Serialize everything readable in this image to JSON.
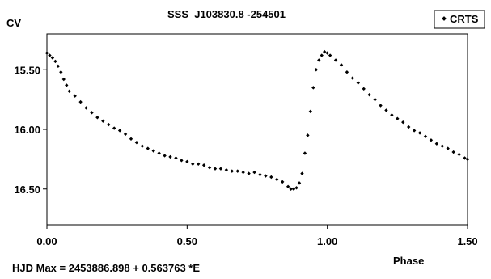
{
  "chart_data": {
    "type": "scatter",
    "title": "SSS_J103830.8 -254501",
    "ylabel": "CV",
    "xlabel": "Phase",
    "xlim": [
      0,
      1.5
    ],
    "ylim": [
      15.2,
      16.8
    ],
    "y_inverted": true,
    "x_ticks": [
      "0.00",
      "0.50",
      "1.00",
      "1.50"
    ],
    "y_ticks": [
      "15.50",
      "16.00",
      "16.50"
    ],
    "grid": false,
    "legend_position": "top-right",
    "annotation": "HJD Max = 2453886.898 + 0.563763 *E",
    "series": [
      {
        "name": "CRTS",
        "color": "#000000",
        "marker": "diamond",
        "points": [
          [
            0.0,
            15.36
          ],
          [
            0.01,
            15.38
          ],
          [
            0.02,
            15.4
          ],
          [
            0.03,
            15.43
          ],
          [
            0.04,
            15.47
          ],
          [
            0.05,
            15.52
          ],
          [
            0.06,
            15.58
          ],
          [
            0.07,
            15.63
          ],
          [
            0.08,
            15.68
          ],
          [
            0.1,
            15.72
          ],
          [
            0.12,
            15.77
          ],
          [
            0.14,
            15.82
          ],
          [
            0.16,
            15.86
          ],
          [
            0.18,
            15.9
          ],
          [
            0.2,
            15.93
          ],
          [
            0.22,
            15.96
          ],
          [
            0.24,
            15.99
          ],
          [
            0.26,
            16.01
          ],
          [
            0.28,
            16.04
          ],
          [
            0.3,
            16.08
          ],
          [
            0.32,
            16.11
          ],
          [
            0.34,
            16.14
          ],
          [
            0.36,
            16.16
          ],
          [
            0.38,
            16.18
          ],
          [
            0.4,
            16.2
          ],
          [
            0.42,
            16.22
          ],
          [
            0.44,
            16.23
          ],
          [
            0.46,
            16.24
          ],
          [
            0.48,
            16.26
          ],
          [
            0.5,
            16.27
          ],
          [
            0.52,
            16.29
          ],
          [
            0.54,
            16.29
          ],
          [
            0.56,
            16.3
          ],
          [
            0.58,
            16.32
          ],
          [
            0.6,
            16.33
          ],
          [
            0.62,
            16.33
          ],
          [
            0.64,
            16.34
          ],
          [
            0.66,
            16.35
          ],
          [
            0.68,
            16.35
          ],
          [
            0.7,
            16.36
          ],
          [
            0.72,
            16.37
          ],
          [
            0.74,
            16.36
          ],
          [
            0.76,
            16.38
          ],
          [
            0.78,
            16.39
          ],
          [
            0.8,
            16.4
          ],
          [
            0.82,
            16.42
          ],
          [
            0.84,
            16.44
          ],
          [
            0.86,
            16.48
          ],
          [
            0.87,
            16.5
          ],
          [
            0.88,
            16.5
          ],
          [
            0.89,
            16.49
          ],
          [
            0.9,
            16.45
          ],
          [
            0.91,
            16.37
          ],
          [
            0.92,
            16.2
          ],
          [
            0.93,
            16.05
          ],
          [
            0.94,
            15.85
          ],
          [
            0.95,
            15.65
          ],
          [
            0.96,
            15.5
          ],
          [
            0.97,
            15.42
          ],
          [
            0.98,
            15.38
          ],
          [
            0.99,
            15.35
          ],
          [
            1.0,
            15.36
          ],
          [
            1.01,
            15.38
          ],
          [
            1.03,
            15.42
          ],
          [
            1.05,
            15.46
          ],
          [
            1.07,
            15.52
          ],
          [
            1.09,
            15.57
          ],
          [
            1.11,
            15.61
          ],
          [
            1.13,
            15.66
          ],
          [
            1.15,
            15.71
          ],
          [
            1.17,
            15.75
          ],
          [
            1.19,
            15.8
          ],
          [
            1.21,
            15.84
          ],
          [
            1.23,
            15.88
          ],
          [
            1.25,
            15.91
          ],
          [
            1.27,
            15.94
          ],
          [
            1.29,
            15.98
          ],
          [
            1.31,
            16.01
          ],
          [
            1.33,
            16.03
          ],
          [
            1.35,
            16.06
          ],
          [
            1.37,
            16.09
          ],
          [
            1.39,
            16.12
          ],
          [
            1.41,
            16.14
          ],
          [
            1.43,
            16.16
          ],
          [
            1.45,
            16.19
          ],
          [
            1.47,
            16.21
          ],
          [
            1.49,
            16.24
          ],
          [
            1.5,
            16.25
          ]
        ]
      }
    ]
  }
}
